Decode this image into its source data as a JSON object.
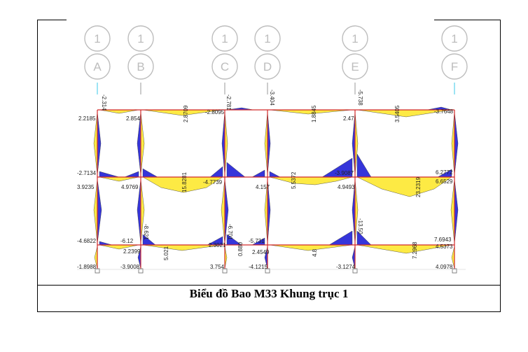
{
  "caption": "Biểu đồ Bao M33 Khung trục 1",
  "colors": {
    "positive": "#fde93a",
    "negative": "#2a2ad8",
    "member": "#d22a2a",
    "bubble": "#bdbdbd"
  },
  "axes": [
    {
      "row": "1",
      "col": "A"
    },
    {
      "row": "1",
      "col": "B"
    },
    {
      "row": "1",
      "col": "C"
    },
    {
      "row": "1",
      "col": "D"
    },
    {
      "row": "1",
      "col": "E"
    },
    {
      "row": "1",
      "col": "F"
    }
  ],
  "labels": [
    "-2.314",
    "2.2185",
    "2.854",
    "2.8709",
    "-2.8095",
    "-2.781",
    "-3.404",
    "1.8845",
    "2.47",
    "-5.738",
    "3.5405",
    "-3.7648",
    "-2.7134",
    "3.9235",
    "4.9769",
    "15.8281",
    "-4.7739",
    "4.157",
    "5.5372",
    "4.9493",
    "-3.9087",
    "6.2772",
    "23.2319",
    "6.6529",
    "-4.6822",
    "-6.12",
    "2.2399",
    "5.021",
    "-8.621",
    "2.3021",
    "-6.701",
    "-5.731",
    "2.4549",
    "4.8",
    "-13.50",
    "7.2968",
    "7.6943",
    "4.5373",
    "-1.8988",
    "-3.9008",
    "3.754",
    "-4.1215",
    "-3.1274",
    "4.0978",
    "0.880"
  ]
}
